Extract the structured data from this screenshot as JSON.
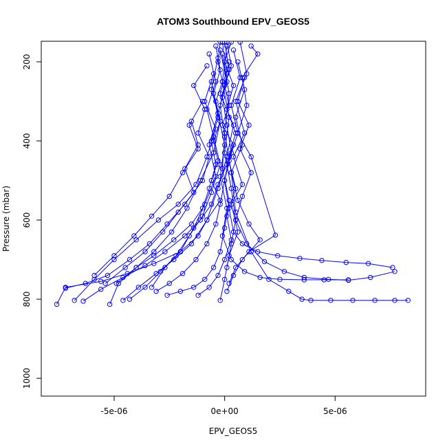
{
  "chart_data": {
    "type": "line",
    "title": "ATOM3 Southbound EPV_GEOS5",
    "xlabel": "EPV_GEOS5",
    "ylabel": "Pressure (mbar)",
    "xlim": [
      -8.3e-06,
      9.1e-06
    ],
    "ylim": [
      1045,
      148
    ],
    "y_reversed": true,
    "x_ticks": [
      {
        "value": -5e-06,
        "label": "-5e-06"
      },
      {
        "value": 0,
        "label": "0e+00"
      },
      {
        "value": 5e-06,
        "label": "5e-06"
      }
    ],
    "y_ticks": [
      {
        "value": 200,
        "label": "200"
      },
      {
        "value": 400,
        "label": "400"
      },
      {
        "value": 600,
        "label": "600"
      },
      {
        "value": 800,
        "label": "800"
      },
      {
        "value": 1000,
        "label": "1000"
      }
    ],
    "grid": false,
    "legend": "none",
    "marker": "open-circle",
    "color": "#0000ff",
    "series": [
      {
        "x": [
          -2e-07,
          -3e-07,
          -1e-07,
          -4e-07,
          -2e-07,
          -5e-07,
          -3e-07,
          -6e-07,
          -2e-07,
          -8e-07,
          -1.2e-06,
          -2e-06,
          -3.2e-06,
          -4.4e-06,
          -5.6e-06,
          -7.2e-06,
          -7.6e-06
        ],
        "y": [
          150,
          200,
          250,
          300,
          350,
          400,
          450,
          500,
          550,
          600,
          640,
          680,
          710,
          735,
          755,
          770,
          813
        ]
      },
      {
        "x": [
          1e-07,
          3e-07,
          0.0,
          2e-07,
          -1e-07,
          4e-07,
          1e-07,
          -3e-07,
          -6e-07,
          -1.1e-06,
          -1.8e-06,
          -2.7e-06,
          -3.6e-06,
          -4.6e-06,
          -5.6e-06,
          -6.4e-06
        ],
        "y": [
          150,
          210,
          260,
          310,
          360,
          410,
          460,
          510,
          560,
          600,
          640,
          680,
          715,
          745,
          775,
          805
        ]
      },
      {
        "x": [
          -4e-07,
          -2e-07,
          -5e-07,
          -3e-07,
          -6e-07,
          -4e-07,
          -7e-07,
          -1e-06,
          -1.5e-06,
          -2.3e-06,
          -3.2e-06,
          -4e-06,
          -4.8e-06,
          -5.2e-06
        ],
        "y": [
          160,
          220,
          280,
          340,
          400,
          460,
          520,
          570,
          610,
          650,
          690,
          720,
          760,
          813
        ]
      },
      {
        "x": [
          0.0,
          2e-07,
          -1e-07,
          1e-07,
          3e-07,
          0.0,
          2e-07,
          4e-07,
          8e-07,
          1.5e-06,
          2.4e-06,
          3.4e-06,
          4.4e-06,
          5.5e-06,
          6.5e-06,
          7.6e-06
        ],
        "y": [
          150,
          220,
          290,
          360,
          430,
          500,
          570,
          630,
          660,
          680,
          690,
          697,
          702,
          707,
          710,
          720
        ]
      },
      {
        "x": [
          1e-07,
          -1e-07,
          2e-07,
          0.0,
          3e-07,
          5e-07,
          1e-06,
          1.8e-06,
          2.7e-06,
          3.6e-06,
          4.7e-06,
          5.6e-06,
          6.6e-06,
          7.7e-06
        ],
        "y": [
          160,
          250,
          340,
          430,
          520,
          600,
          660,
          705,
          730,
          745,
          750,
          752,
          745,
          730
        ]
      },
      {
        "x": [
          -1e-07,
          2e-07,
          0.0,
          3e-07,
          5e-07,
          1.2e-06,
          2e-06,
          2.9e-06,
          3.5e-06,
          3.9e-06,
          4.8e-06,
          5.8e-06,
          6.8e-06,
          7.7e-06,
          8.3e-06
        ],
        "y": [
          180,
          280,
          380,
          480,
          580,
          680,
          750,
          780,
          800,
          803,
          803,
          803,
          803,
          803,
          803
        ]
      },
      {
        "x": [
          -2e-07,
          1e-07,
          -3e-07,
          0.0,
          -2e-07,
          1e-07,
          -1e-07,
          3e-07,
          9e-07,
          1.6e-06,
          2.5e-06,
          3.6e-06,
          4.5e-06,
          5.6e-06
        ],
        "y": [
          170,
          250,
          330,
          410,
          490,
          570,
          640,
          700,
          730,
          745,
          750,
          751,
          751,
          751
        ]
      },
      {
        "x": [
          7e-07,
          1e-06,
          5e-07,
          9e-07,
          4e-07,
          8e-07,
          3e-07,
          6e-07,
          2e-07,
          0.0,
          -2e-07
        ],
        "y": [
          150,
          230,
          300,
          380,
          440,
          510,
          560,
          630,
          690,
          750,
          803
        ]
      },
      {
        "x": [
          1.2e-06,
          1.5e-06,
          8e-07,
          1e-06,
          6e-07,
          1.2e-06,
          2.3e-06,
          1.1e-06,
          5e-07,
          2e-07
        ],
        "y": [
          160,
          180,
          240,
          310,
          380,
          440,
          638,
          680,
          720,
          760
        ]
      },
      {
        "x": [
          -8e-07,
          -1.4e-06,
          -9e-07,
          -1.2e-06,
          -7e-07,
          -1e-06,
          -1.8e-06,
          -2.6e-06,
          -3.4e-06,
          -4.3e-06,
          -5.3e-06,
          -6.3e-06,
          -7.2e-06
        ],
        "y": [
          210,
          260,
          320,
          380,
          440,
          500,
          560,
          610,
          660,
          700,
          740,
          760,
          772
        ]
      },
      {
        "x": [
          -5e-07,
          -9e-07,
          -4e-07,
          -8e-07,
          -1.3e-06,
          -2.1e-06,
          -3e-06,
          -4e-06,
          -5e-06,
          -5.9e-06,
          -6.8e-06
        ],
        "y": [
          230,
          300,
          370,
          440,
          510,
          560,
          600,
          650,
          700,
          750,
          803
        ]
      },
      {
        "x": [
          -3e-07,
          -6e-07,
          -2e-07,
          -5e-07,
          -1.1e-06,
          -1.7e-06,
          -2.4e-06,
          -3.2e-06,
          -4e-06,
          -4.9e-06
        ],
        "y": [
          190,
          270,
          350,
          430,
          500,
          570,
          630,
          680,
          720,
          760
        ]
      },
      {
        "x": [
          2e-07,
          -2e-07,
          4e-07,
          1e-07,
          -3e-07,
          -8e-07,
          -1.5e-06,
          -2.3e-06,
          -3.1e-06,
          -3.9e-06,
          -4.6e-06
        ],
        "y": [
          200,
          280,
          360,
          440,
          520,
          600,
          660,
          700,
          735,
          770,
          803
        ]
      },
      {
        "x": [
          -6e-07,
          -3e-07,
          -7e-07,
          -4e-07,
          -9e-07,
          -1.4e-06,
          -2e-06,
          -2.7e-06,
          -3.3e-06
        ],
        "y": [
          250,
          330,
          410,
          490,
          560,
          620,
          680,
          720,
          770
        ]
      },
      {
        "x": [
          4e-07,
          7e-07,
          3e-07,
          6e-07,
          2e-07,
          5e-07,
          1e-07,
          3e-07,
          0.0,
          -3e-07,
          -7e-07,
          -1.2e-06
        ],
        "y": [
          170,
          240,
          310,
          380,
          450,
          520,
          590,
          650,
          700,
          740,
          770,
          790
        ]
      },
      {
        "x": [
          -1e-06,
          -1.6e-06,
          -1.2e-06,
          -1.9e-06,
          -2.5e-06,
          -3.3e-06,
          -4.1e-06,
          -5e-06,
          -5.9e-06
        ],
        "y": [
          300,
          360,
          420,
          480,
          540,
          590,
          640,
          690,
          740
        ]
      },
      {
        "x": [
          -1e-07,
          1e-07,
          -2e-07,
          0.0,
          -1e-07,
          2e-07,
          0.0,
          -2e-07,
          -5e-07,
          -9e-07,
          -1.4e-06,
          -2e-06,
          -2.6e-06
        ],
        "y": [
          150,
          230,
          310,
          390,
          470,
          550,
          620,
          680,
          720,
          750,
          770,
          780,
          790
        ]
      },
      {
        "x": [
          6e-07,
          9e-07,
          5e-07,
          8e-07,
          3e-07,
          6e-07,
          1.1e-06,
          1.6e-06,
          8e-07,
          4e-07,
          1e-07
        ],
        "y": [
          200,
          270,
          340,
          410,
          480,
          550,
          610,
          650,
          700,
          740,
          780
        ]
      },
      {
        "x": [
          -1.5e-06,
          -1.2e-06,
          -1.8e-06,
          -1.4e-06,
          -2.1e-06,
          -2.8e-06,
          -3.6e-06,
          -4.5e-06,
          -5.4e-06
        ],
        "y": [
          350,
          410,
          470,
          530,
          580,
          630,
          680,
          720,
          760
        ]
      },
      {
        "x": [
          3e-07,
          0.0,
          4e-07,
          1e-07,
          5e-07,
          2e-07,
          0.0,
          -2e-07,
          -4e-07,
          -8e-07,
          -1.3e-06,
          -1.9e-06,
          -2.5e-06,
          -3.1e-06
        ],
        "y": [
          150,
          200,
          260,
          320,
          380,
          440,
          500,
          560,
          610,
          660,
          700,
          735,
          760,
          780
        ]
      },
      {
        "x": [
          -7e-07,
          -4e-07,
          -8e-07,
          -5e-07,
          -2e-07,
          -6e-07,
          -1e-06,
          -1.6e-06,
          -2.2e-06,
          -2.9e-06,
          -3.6e-06,
          -4.3e-06
        ],
        "y": [
          180,
          250,
          320,
          390,
          460,
          530,
          590,
          640,
          690,
          730,
          770,
          800
        ]
      },
      {
        "x": [
          9e-07,
          6e-07,
          1.1e-06,
          7e-07,
          1.2e-06,
          8e-07,
          5e-07,
          3e-07,
          1e-07
        ],
        "y": [
          240,
          300,
          360,
          420,
          480,
          540,
          600,
          660,
          720
        ]
      }
    ]
  }
}
